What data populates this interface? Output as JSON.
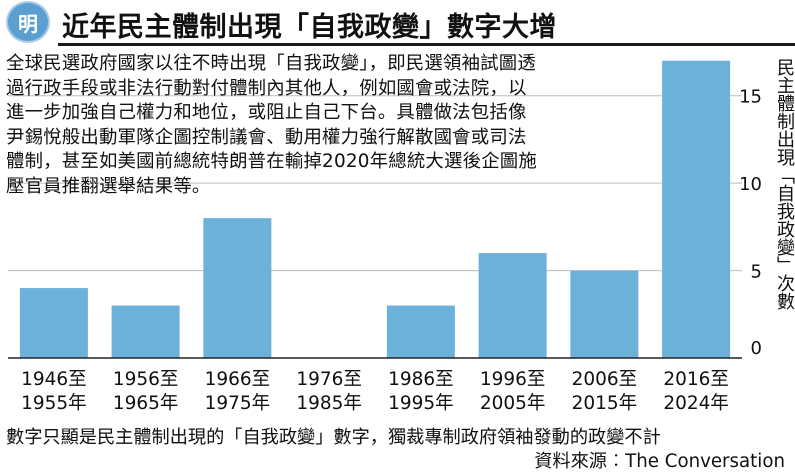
{
  "header": {
    "logo_char": "明",
    "title": "近年民主體制出現「自我政變」數字大增"
  },
  "description": [
    "全球民選政府國家以往不時出現「自我政變」，即民選領袖試圖透",
    "過行政手段或非法行動對付體制內其他人，例如國會或法院，以",
    "進一步加強自己權力和地位，或阻止自己下台。具體做法包括像",
    "尹錫悅般出動軍隊企圖控制議會、動用權力強行解散國會或司法",
    "體制，甚至如美國前總統特朗普在輸掉2020年總統大選後企圖施",
    "壓官員推翻選舉結果等。"
  ],
  "footnote": "數字只顯是民主體制出現的「自我政變」數字，獨裁專制政府領袖發動的政變不計",
  "source": "資料來源︰The Conversation",
  "colors": {
    "bar": "#6cb1d9",
    "grid": "#bdbdbd",
    "axis": "#222222"
  },
  "chart_data": {
    "type": "bar",
    "title": "近年民主體制出現「自我政變」數字大增",
    "ylabel": "民主體制出現「自我政變」次數",
    "categories": [
      [
        "1946至",
        "1955年"
      ],
      [
        "1956至",
        "1965年"
      ],
      [
        "1966至",
        "1975年"
      ],
      [
        "1976至",
        "1985年"
      ],
      [
        "1986至",
        "1995年"
      ],
      [
        "1996至",
        "2005年"
      ],
      [
        "2006至",
        "2015年"
      ],
      [
        "2016至",
        "2024年"
      ]
    ],
    "values": [
      4,
      3,
      8,
      0,
      3,
      6,
      5,
      17
    ],
    "ylim": [
      0,
      17.5
    ],
    "yticks": [
      0,
      5,
      10,
      15
    ],
    "y_axis_side": "right",
    "grid": true
  }
}
